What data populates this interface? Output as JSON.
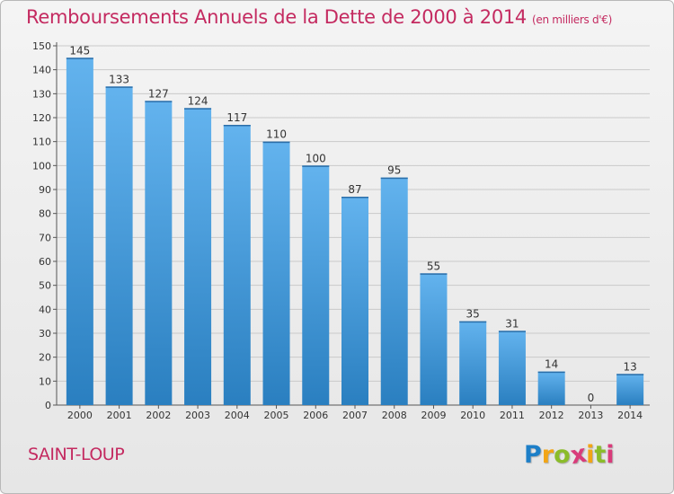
{
  "chart_data": {
    "type": "bar",
    "title": "Remboursements Annuels de la Dette de 2000 à 2014",
    "subtitle": "(en milliers d'€)",
    "categories": [
      "2000",
      "2001",
      "2002",
      "2003",
      "2004",
      "2005",
      "2006",
      "2007",
      "2008",
      "2009",
      "2010",
      "2011",
      "2012",
      "2013",
      "2014"
    ],
    "values": [
      145,
      133,
      127,
      124,
      117,
      110,
      100,
      87,
      95,
      55,
      35,
      31,
      14,
      0,
      13
    ],
    "ylim": [
      0,
      150
    ],
    "yticks": [
      0,
      10,
      20,
      30,
      40,
      50,
      60,
      70,
      80,
      90,
      100,
      110,
      120,
      130,
      140,
      150
    ],
    "xlabel": "",
    "ylabel": "",
    "grid": true
  },
  "town": "SAINT-LOUP",
  "brand": {
    "letters": [
      "P",
      "r",
      "o",
      "x",
      "i",
      "t",
      "i"
    ],
    "colors": [
      "#1d7fc8",
      "#f2a516",
      "#8bbc2a",
      "#d93b7a",
      "#f2a516",
      "#8bbc2a",
      "#d93b7a"
    ]
  },
  "colors": {
    "title": "#c42a60",
    "bar_light": "#63b3ee",
    "bar_dark": "#2a7fc0",
    "grid": "#c9c9c9",
    "axis": "#555555"
  }
}
